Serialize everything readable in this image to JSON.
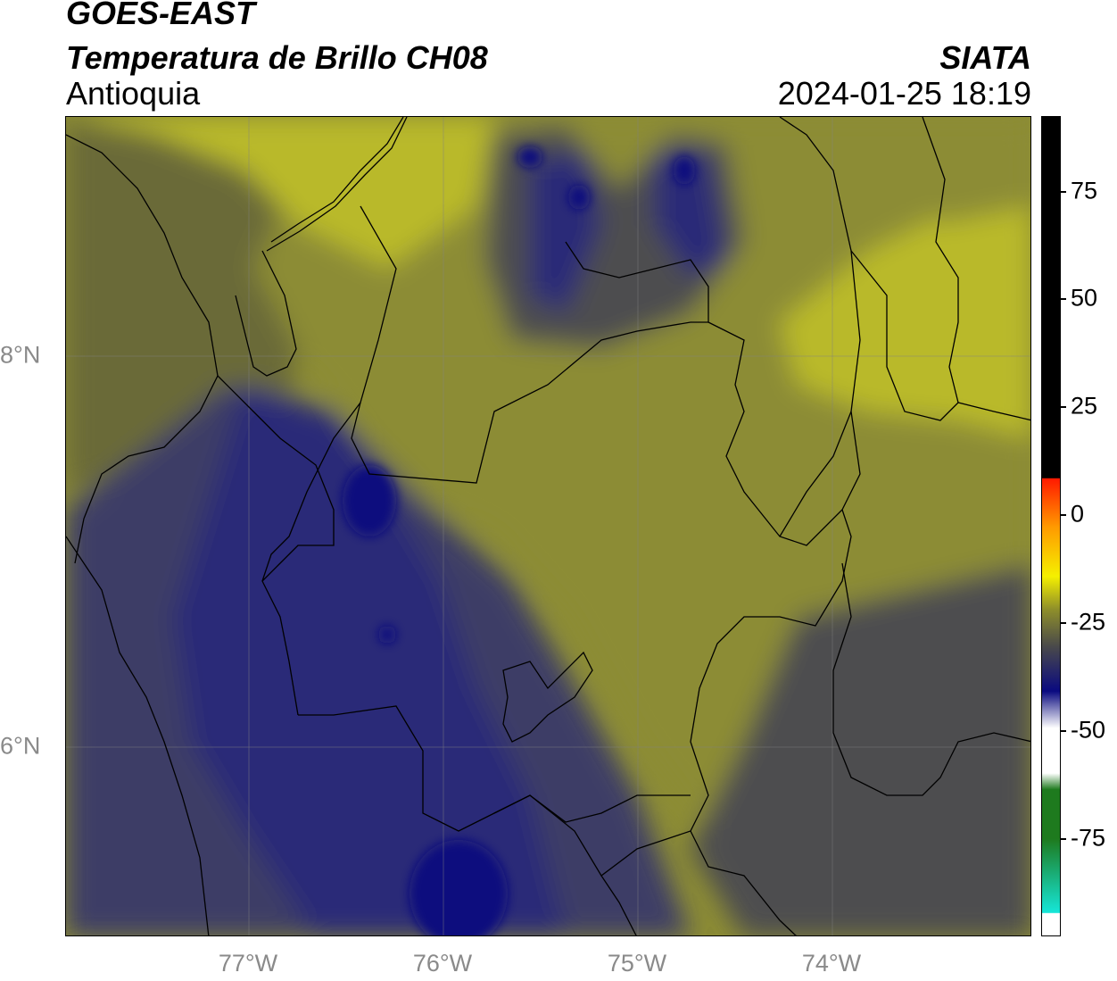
{
  "header": {
    "satellite": "GOES-EAST",
    "product": "Temperatura de Brillo CH08",
    "region": "Antioquia",
    "organization": "SIATA",
    "datetime": "2024-01-25 18:19"
  },
  "axes": {
    "x_labels": [
      "77°W",
      "76°W",
      "75°W",
      "74°W"
    ],
    "y_labels": [
      "8°N",
      "6°N"
    ]
  },
  "colorbar": {
    "tick_labels": [
      "75",
      "50",
      "25",
      "0",
      "-25",
      "-50",
      "-75"
    ],
    "colors": {
      "black": "#000000",
      "red": "#ff1a00",
      "orange": "#ff9a00",
      "yellow": "#f5f000",
      "olive": "#8f8f2a",
      "gray": "#4a4a4a",
      "navy": "#0a0a80",
      "white": "#ffffff",
      "green": "#1e7a1e",
      "cyan": "#16e6d8"
    }
  },
  "map": {
    "colors": {
      "light_yellow": "#b9b92a",
      "mid_olive": "#8c8c34",
      "dark_olive": "#6b6b38",
      "gray": "#4e4e50",
      "slate_blue": "#3d3d66",
      "blue": "#2a2a78",
      "deep_blue": "#0f0f7e"
    }
  }
}
